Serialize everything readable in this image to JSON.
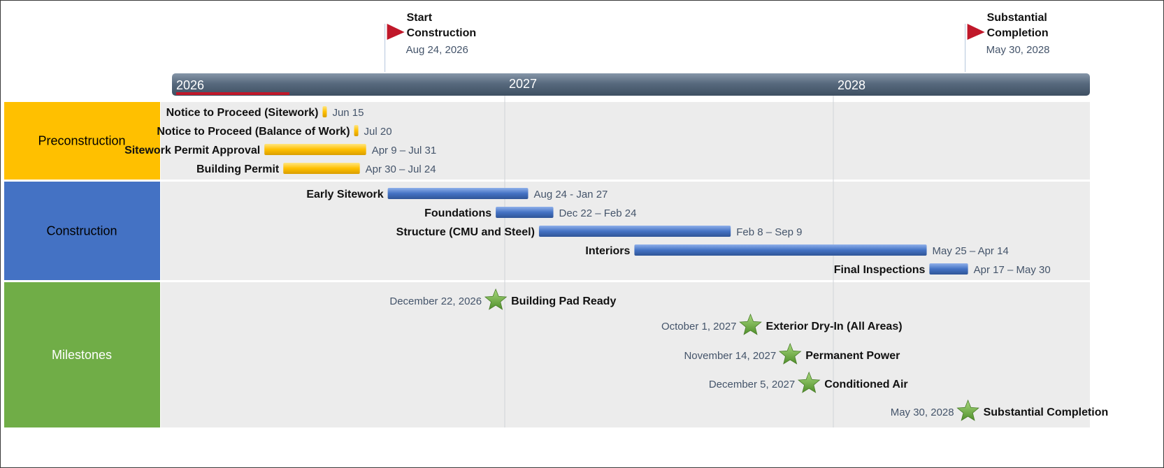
{
  "chart_data": {
    "type": "gantt",
    "title": "",
    "years": [
      "2026",
      "2027",
      "2028"
    ],
    "today_marker_color": "#c0182a",
    "milestone_flags": [
      {
        "lines": [
          "Start",
          "Construction"
        ],
        "date_label": "Aug 24, 2026",
        "date": "2026-08-24",
        "color": "#c0182a"
      },
      {
        "lines": [
          "Substantial",
          "Completion"
        ],
        "date_label": "May 30, 2028",
        "date": "2028-05-30",
        "color": "#c0182a"
      }
    ],
    "swimlanes": [
      {
        "name": "Preconstruction",
        "color": "#ffc000",
        "text_color": "#000000"
      },
      {
        "name": "Construction",
        "color": "#4472c4",
        "text_color": "#000000"
      },
      {
        "name": "Milestones",
        "color": "#70ad47",
        "text_color": "#ffffff"
      }
    ],
    "tasks": [
      {
        "lane": "Preconstruction",
        "name": "Notice to Proceed (Sitework)",
        "start": "2026-06-15",
        "end": "2026-06-15",
        "date_label": "Jun 15",
        "color": "#ffc000"
      },
      {
        "lane": "Preconstruction",
        "name": "Notice to Proceed (Balance of Work)",
        "start": "2026-07-20",
        "end": "2026-07-20",
        "date_label": "Jul 20",
        "color": "#ffc000"
      },
      {
        "lane": "Preconstruction",
        "name": "Sitework Permit Approval",
        "start": "2026-04-09",
        "end": "2026-07-31",
        "date_label": "Apr 9 – Jul 31",
        "color": "#ffc000"
      },
      {
        "lane": "Preconstruction",
        "name": "Building Permit",
        "start": "2026-04-30",
        "end": "2026-07-24",
        "date_label": "Apr 30 – Jul 24",
        "color": "#ffc000"
      },
      {
        "lane": "Construction",
        "name": "Early Sitework",
        "start": "2026-08-24",
        "end": "2027-01-27",
        "date_label": "Aug 24 -  Jan 27",
        "color": "#4472c4"
      },
      {
        "lane": "Construction",
        "name": "Foundations",
        "start": "2026-12-22",
        "end": "2027-02-24",
        "date_label": "Dec 22 – Feb 24",
        "color": "#4472c4"
      },
      {
        "lane": "Construction",
        "name": "Structure (CMU and Steel)",
        "start": "2027-02-08",
        "end": "2027-09-09",
        "date_label": "Feb 8 – Sep 9",
        "color": "#4472c4"
      },
      {
        "lane": "Construction",
        "name": "Interiors",
        "start": "2027-05-25",
        "end": "2028-04-14",
        "date_label": "May 25 – Apr 14",
        "color": "#4472c4"
      },
      {
        "lane": "Construction",
        "name": "Final Inspections",
        "start": "2028-04-17",
        "end": "2028-05-30",
        "date_label": "Apr 17 – May 30",
        "color": "#4472c4"
      }
    ],
    "milestones": [
      {
        "name": "Building Pad Ready",
        "date": "2026-12-22",
        "date_label": "December 22, 2026",
        "color": "#70ad47"
      },
      {
        "name": "Exterior Dry-In (All Areas)",
        "date": "2027-10-01",
        "date_label": "October 1, 2027",
        "color": "#70ad47"
      },
      {
        "name": "Permanent Power",
        "date": "2027-11-14",
        "date_label": "November 14, 2027",
        "color": "#70ad47"
      },
      {
        "name": "Conditioned Air",
        "date": "2027-12-05",
        "date_label": "December 5, 2027",
        "color": "#70ad47"
      },
      {
        "name": "Substantial Completion",
        "date": "2028-05-30",
        "date_label": "May 30, 2028",
        "color": "#70ad47"
      }
    ]
  }
}
